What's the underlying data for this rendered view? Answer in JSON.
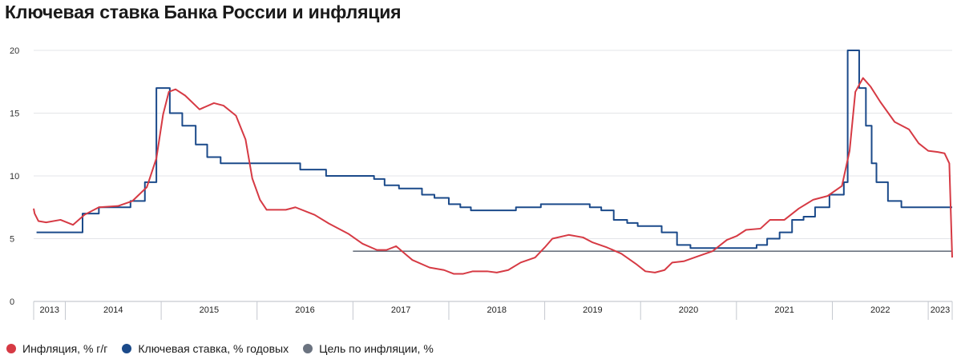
{
  "title": "Ключевая ставка Банка России и инфляция",
  "legend": [
    {
      "label": "Инфляция, % г/г",
      "color": "#d63a44"
    },
    {
      "label": "Ключевая ставка, % годовых",
      "color": "#1b4a8a"
    },
    {
      "label": "Цель по инфляции, %",
      "color": "#6b7380"
    }
  ],
  "chart_data": {
    "type": "line",
    "title": "Ключевая ставка Банка России и инфляция",
    "xlabel": "",
    "ylabel": "",
    "ylim": [
      0,
      20
    ],
    "yticks": [
      0,
      5,
      10,
      15,
      20
    ],
    "xlim": [
      2013.67,
      2023.25
    ],
    "grid": true,
    "legend_position": "bottom",
    "year_labels": [
      {
        "label": "2013",
        "from": 2013.67,
        "to": 2014.0
      },
      {
        "label": "2014",
        "from": 2014.0,
        "to": 2015.0
      },
      {
        "label": "2015",
        "from": 2015.0,
        "to": 2016.0
      },
      {
        "label": "2016",
        "from": 2016.0,
        "to": 2017.0
      },
      {
        "label": "2017",
        "from": 2017.0,
        "to": 2018.0
      },
      {
        "label": "2018",
        "from": 2018.0,
        "to": 2019.0
      },
      {
        "label": "2019",
        "from": 2019.0,
        "to": 2020.0
      },
      {
        "label": "2020",
        "from": 2020.0,
        "to": 2021.0
      },
      {
        "label": "2021",
        "from": 2021.0,
        "to": 2022.0
      },
      {
        "label": "2022",
        "from": 2022.0,
        "to": 2023.0
      },
      {
        "label": "2023",
        "from": 2023.0,
        "to": 2023.25
      }
    ],
    "series": [
      {
        "name": "Инфляция, % г/г",
        "color": "#d63a44",
        "kind": "line",
        "points": [
          [
            2013.67,
            7.4
          ],
          [
            2013.68,
            7.0
          ],
          [
            2013.72,
            6.4
          ],
          [
            2013.8,
            6.3
          ],
          [
            2013.95,
            6.5
          ],
          [
            2014.08,
            6.1
          ],
          [
            2014.2,
            6.9
          ],
          [
            2014.35,
            7.5
          ],
          [
            2014.55,
            7.6
          ],
          [
            2014.7,
            8.0
          ],
          [
            2014.85,
            9.1
          ],
          [
            2014.95,
            11.4
          ],
          [
            2015.02,
            14.9
          ],
          [
            2015.08,
            16.7
          ],
          [
            2015.15,
            16.9
          ],
          [
            2015.25,
            16.4
          ],
          [
            2015.4,
            15.3
          ],
          [
            2015.55,
            15.8
          ],
          [
            2015.65,
            15.6
          ],
          [
            2015.78,
            14.8
          ],
          [
            2015.88,
            12.9
          ],
          [
            2015.95,
            9.8
          ],
          [
            2016.03,
            8.1
          ],
          [
            2016.1,
            7.3
          ],
          [
            2016.3,
            7.3
          ],
          [
            2016.4,
            7.5
          ],
          [
            2016.6,
            6.9
          ],
          [
            2016.75,
            6.2
          ],
          [
            2016.95,
            5.4
          ],
          [
            2017.1,
            4.6
          ],
          [
            2017.25,
            4.1
          ],
          [
            2017.35,
            4.1
          ],
          [
            2017.45,
            4.4
          ],
          [
            2017.62,
            3.3
          ],
          [
            2017.8,
            2.7
          ],
          [
            2017.95,
            2.5
          ],
          [
            2018.05,
            2.2
          ],
          [
            2018.15,
            2.2
          ],
          [
            2018.25,
            2.4
          ],
          [
            2018.4,
            2.4
          ],
          [
            2018.5,
            2.3
          ],
          [
            2018.62,
            2.5
          ],
          [
            2018.75,
            3.1
          ],
          [
            2018.9,
            3.5
          ],
          [
            2019.0,
            4.3
          ],
          [
            2019.08,
            5.0
          ],
          [
            2019.25,
            5.3
          ],
          [
            2019.4,
            5.1
          ],
          [
            2019.5,
            4.7
          ],
          [
            2019.65,
            4.3
          ],
          [
            2019.8,
            3.8
          ],
          [
            2019.95,
            3.0
          ],
          [
            2020.05,
            2.4
          ],
          [
            2020.15,
            2.3
          ],
          [
            2020.25,
            2.5
          ],
          [
            2020.33,
            3.1
          ],
          [
            2020.45,
            3.2
          ],
          [
            2020.6,
            3.6
          ],
          [
            2020.75,
            4.0
          ],
          [
            2020.9,
            4.9
          ],
          [
            2021.0,
            5.2
          ],
          [
            2021.1,
            5.7
          ],
          [
            2021.25,
            5.8
          ],
          [
            2021.35,
            6.5
          ],
          [
            2021.5,
            6.5
          ],
          [
            2021.65,
            7.4
          ],
          [
            2021.8,
            8.1
          ],
          [
            2021.95,
            8.4
          ],
          [
            2022.1,
            9.2
          ],
          [
            2022.18,
            12.0
          ],
          [
            2022.24,
            16.7
          ],
          [
            2022.32,
            17.8
          ],
          [
            2022.4,
            17.1
          ],
          [
            2022.5,
            15.9
          ],
          [
            2022.65,
            14.3
          ],
          [
            2022.8,
            13.7
          ],
          [
            2022.9,
            12.6
          ],
          [
            2023.0,
            12.0
          ],
          [
            2023.1,
            11.9
          ],
          [
            2023.17,
            11.8
          ],
          [
            2023.22,
            11.0
          ],
          [
            2023.25,
            3.5
          ]
        ]
      },
      {
        "name": "Ключевая ставка, % годовых",
        "color": "#1b4a8a",
        "kind": "step",
        "points": [
          [
            2013.7,
            5.5
          ],
          [
            2014.18,
            7.0
          ],
          [
            2014.35,
            7.5
          ],
          [
            2014.68,
            8.0
          ],
          [
            2014.83,
            9.5
          ],
          [
            2014.95,
            17.0
          ],
          [
            2015.09,
            15.0
          ],
          [
            2015.22,
            14.0
          ],
          [
            2015.36,
            12.5
          ],
          [
            2015.48,
            11.5
          ],
          [
            2015.62,
            11.0
          ],
          [
            2016.45,
            10.5
          ],
          [
            2016.72,
            10.0
          ],
          [
            2017.22,
            9.75
          ],
          [
            2017.33,
            9.25
          ],
          [
            2017.48,
            9.0
          ],
          [
            2017.72,
            8.5
          ],
          [
            2017.85,
            8.25
          ],
          [
            2018.0,
            7.75
          ],
          [
            2018.12,
            7.5
          ],
          [
            2018.23,
            7.25
          ],
          [
            2018.7,
            7.5
          ],
          [
            2018.96,
            7.75
          ],
          [
            2019.47,
            7.5
          ],
          [
            2019.59,
            7.25
          ],
          [
            2019.72,
            6.5
          ],
          [
            2019.86,
            6.25
          ],
          [
            2019.97,
            6.0
          ],
          [
            2020.22,
            5.5
          ],
          [
            2020.38,
            4.5
          ],
          [
            2020.52,
            4.25
          ],
          [
            2021.21,
            4.5
          ],
          [
            2021.32,
            5.0
          ],
          [
            2021.45,
            5.5
          ],
          [
            2021.58,
            6.5
          ],
          [
            2021.7,
            6.75
          ],
          [
            2021.82,
            7.5
          ],
          [
            2021.97,
            8.5
          ],
          [
            2022.12,
            9.5
          ],
          [
            2022.16,
            20.0
          ],
          [
            2022.28,
            17.0
          ],
          [
            2022.35,
            14.0
          ],
          [
            2022.41,
            11.0
          ],
          [
            2022.46,
            9.5
          ],
          [
            2022.58,
            8.0
          ],
          [
            2022.72,
            7.5
          ],
          [
            2023.25,
            7.5
          ]
        ]
      },
      {
        "name": "Цель по инфляции, %",
        "color": "#6b7380",
        "kind": "line",
        "points": [
          [
            2017.0,
            4.0
          ],
          [
            2023.25,
            4.0
          ]
        ]
      }
    ]
  }
}
